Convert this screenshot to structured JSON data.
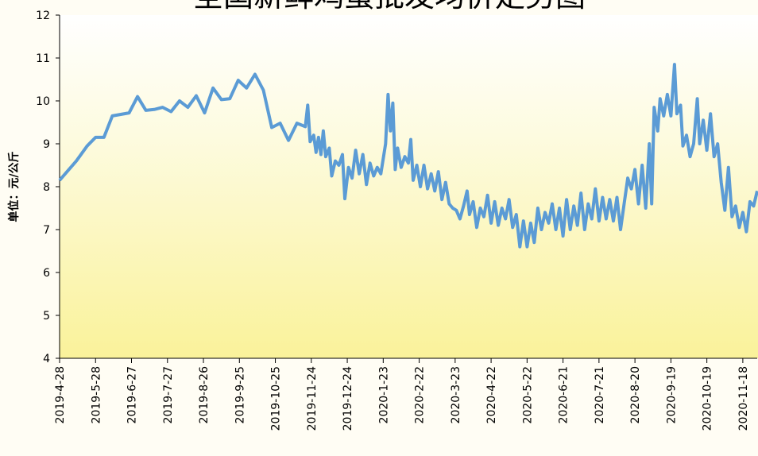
{
  "chart_data": {
    "type": "line",
    "title": "全国新鲜鸡蛋批发均价走势图",
    "y_label": "单位：元/公斤",
    "xlim": [
      "2019-4-28",
      "2020-11-30"
    ],
    "xticks": [
      "2019-4-28",
      "2019-5-28",
      "2019-6-27",
      "2019-7-27",
      "2019-8-26",
      "2019-9-25",
      "2019-10-25",
      "2019-11-24",
      "2019-12-24",
      "2020-1-23",
      "2020-2-22",
      "2020-3-23",
      "2020-4-22",
      "2020-5-22",
      "2020-6-21",
      "2020-7-21",
      "2020-8-20",
      "2020-9-19",
      "2020-10-19",
      "2020-11-18"
    ],
    "ylim": [
      4,
      12
    ],
    "yticks": [
      4,
      5,
      6,
      7,
      8,
      9,
      10,
      11,
      12
    ],
    "x": [
      "2019-4-28",
      "2019-5-12",
      "2019-5-21",
      "2019-5-28",
      "2019-6-4",
      "2019-6-11",
      "2019-6-25",
      "2019-7-2",
      "2019-7-9",
      "2019-7-16",
      "2019-7-23",
      "2019-7-30",
      "2019-8-6",
      "2019-8-13",
      "2019-8-20",
      "2019-8-27",
      "2019-9-3",
      "2019-9-10",
      "2019-9-17",
      "2019-9-24",
      "2019-10-1",
      "2019-10-8",
      "2019-10-15",
      "2019-10-22",
      "2019-10-29",
      "2019-11-5",
      "2019-11-12",
      "2019-11-19",
      "2019-11-21",
      "2019-11-23",
      "2019-11-26",
      "2019-11-28",
      "2019-11-30",
      "2019-12-2",
      "2019-12-4",
      "2019-12-6",
      "2019-12-9",
      "2019-12-11",
      "2019-12-14",
      "2019-12-17",
      "2019-12-20",
      "2019-12-22",
      "2019-12-25",
      "2019-12-28",
      "2019-12-31",
      "2020-1-3",
      "2020-1-6",
      "2020-1-9",
      "2020-1-12",
      "2020-1-15",
      "2020-1-18",
      "2020-1-21",
      "2020-1-25",
      "2020-1-27",
      "2020-1-29",
      "2020-1-31",
      "2020-2-2",
      "2020-2-4",
      "2020-2-7",
      "2020-2-10",
      "2020-2-13",
      "2020-2-15",
      "2020-2-17",
      "2020-2-20",
      "2020-2-23",
      "2020-2-26",
      "2020-2-29",
      "2020-3-3",
      "2020-3-6",
      "2020-3-9",
      "2020-3-12",
      "2020-3-15",
      "2020-3-18",
      "2020-3-21",
      "2020-3-24",
      "2020-3-27",
      "2020-3-30",
      "2020-4-2",
      "2020-4-4",
      "2020-4-7",
      "2020-4-10",
      "2020-4-13",
      "2020-4-16",
      "2020-4-19",
      "2020-4-22",
      "2020-4-25",
      "2020-4-28",
      "2020-5-1",
      "2020-5-4",
      "2020-5-7",
      "2020-5-10",
      "2020-5-13",
      "2020-5-16",
      "2020-5-19",
      "2020-5-22",
      "2020-5-25",
      "2020-5-28",
      "2020-5-31",
      "2020-6-3",
      "2020-6-6",
      "2020-6-9",
      "2020-6-12",
      "2020-6-15",
      "2020-6-18",
      "2020-6-21",
      "2020-6-24",
      "2020-6-27",
      "2020-6-30",
      "2020-7-3",
      "2020-7-6",
      "2020-7-9",
      "2020-7-12",
      "2020-7-15",
      "2020-7-18",
      "2020-7-21",
      "2020-7-24",
      "2020-7-27",
      "2020-7-30",
      "2020-8-2",
      "2020-8-5",
      "2020-8-8",
      "2020-8-11",
      "2020-8-14",
      "2020-8-17",
      "2020-8-20",
      "2020-8-23",
      "2020-8-26",
      "2020-8-29",
      "2020-9-1",
      "2020-9-3",
      "2020-9-5",
      "2020-9-8",
      "2020-9-10",
      "2020-9-13",
      "2020-9-16",
      "2020-9-19",
      "2020-9-22",
      "2020-9-24",
      "2020-9-27",
      "2020-9-29",
      "2020-10-2",
      "2020-10-5",
      "2020-10-8",
      "2020-10-11",
      "2020-10-13",
      "2020-10-16",
      "2020-10-19",
      "2020-10-22",
      "2020-10-25",
      "2020-10-28",
      "2020-10-31",
      "2020-11-3",
      "2020-11-6",
      "2020-11-9",
      "2020-11-12",
      "2020-11-15",
      "2020-11-18",
      "2020-11-21",
      "2020-11-24",
      "2020-11-27",
      "2020-11-30"
    ],
    "series": [
      {
        "color": "#5b9bd5",
        "values": [
          8.15,
          8.6,
          8.95,
          9.15,
          9.15,
          9.65,
          9.72,
          10.1,
          9.78,
          9.8,
          9.85,
          9.75,
          10.0,
          9.85,
          10.12,
          9.72,
          10.3,
          10.03,
          10.05,
          10.48,
          10.3,
          10.62,
          10.25,
          9.38,
          9.48,
          9.08,
          9.48,
          9.4,
          9.9,
          9.05,
          9.2,
          8.8,
          9.15,
          8.75,
          9.3,
          8.7,
          8.9,
          8.25,
          8.6,
          8.5,
          8.75,
          7.72,
          8.45,
          8.2,
          8.85,
          8.3,
          8.75,
          8.05,
          8.55,
          8.25,
          8.45,
          8.3,
          9.0,
          10.15,
          9.3,
          9.95,
          8.4,
          8.9,
          8.45,
          8.7,
          8.55,
          9.1,
          8.15,
          8.5,
          8.0,
          8.5,
          7.95,
          8.3,
          7.9,
          8.35,
          7.7,
          8.1,
          7.6,
          7.5,
          7.45,
          7.25,
          7.55,
          7.9,
          7.35,
          7.65,
          7.05,
          7.5,
          7.3,
          7.8,
          7.15,
          7.65,
          7.1,
          7.5,
          7.25,
          7.7,
          7.05,
          7.35,
          6.6,
          7.2,
          6.6,
          7.15,
          6.7,
          7.5,
          7.0,
          7.4,
          7.15,
          7.6,
          7.0,
          7.5,
          6.85,
          7.7,
          7.0,
          7.55,
          7.1,
          7.85,
          7.0,
          7.6,
          7.25,
          7.95,
          7.2,
          7.75,
          7.25,
          7.7,
          7.2,
          7.75,
          7.0,
          7.6,
          8.2,
          7.95,
          8.4,
          7.6,
          8.5,
          7.5,
          9.0,
          7.6,
          9.85,
          9.3,
          10.05,
          9.65,
          10.15,
          9.65,
          10.85,
          9.7,
          9.9,
          8.95,
          9.2,
          8.7,
          9.0,
          10.05,
          9.0,
          9.55,
          8.85,
          9.7,
          8.7,
          9.0,
          8.1,
          7.45,
          8.45,
          7.3,
          7.55,
          7.05,
          7.4,
          6.95,
          7.65,
          7.55,
          7.9
        ]
      }
    ]
  }
}
